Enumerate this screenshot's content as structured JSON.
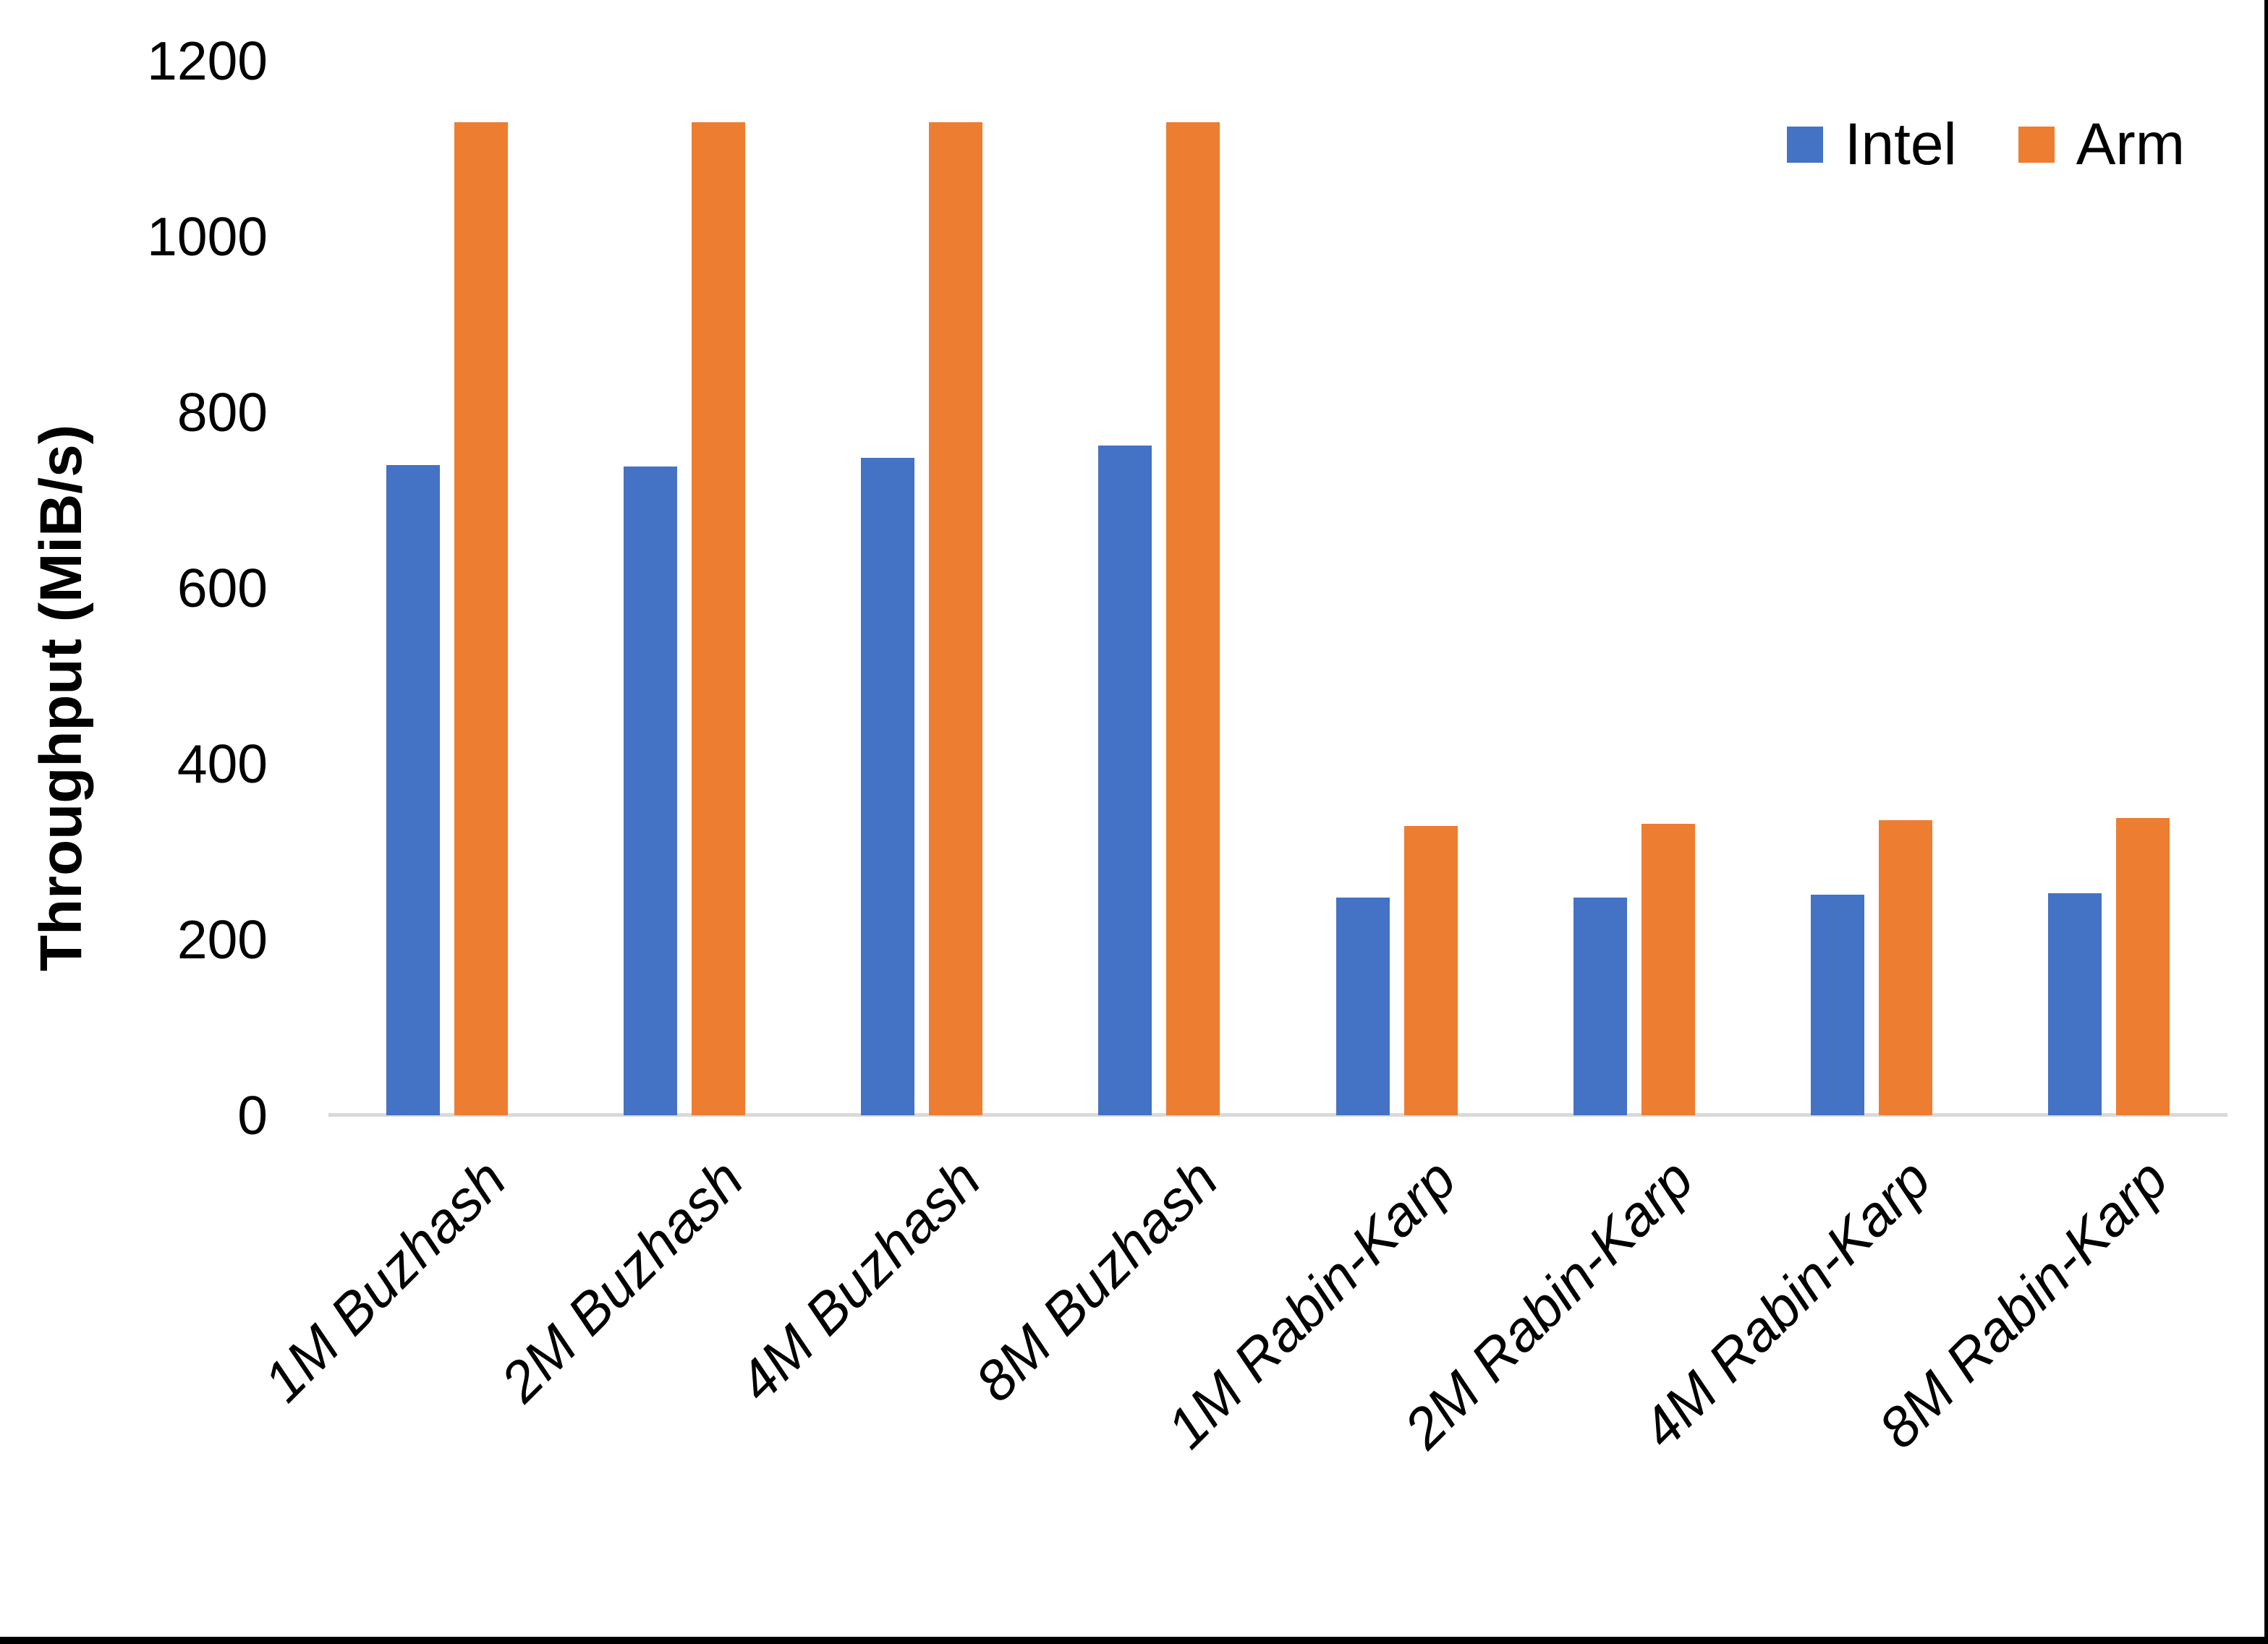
{
  "chart_data": {
    "type": "bar",
    "title": "",
    "xlabel": "",
    "ylabel": "Throughput (MiB/s)",
    "ylim": [
      0,
      1200
    ],
    "yticks": [
      0,
      200,
      400,
      600,
      800,
      1000,
      1200
    ],
    "grid": false,
    "legend_position": "top-right",
    "categories": [
      "1M Buzhash",
      "2M Buzhash",
      "4M Buzhash",
      "8M Buzhash",
      "1M Rabin-Karp",
      "2M Rabin-Karp",
      "4M Rabin-Karp",
      "8M Rabin-Karp"
    ],
    "series": [
      {
        "name": "Intel",
        "color": "#4472C4",
        "values": [
          740,
          738,
          748,
          762,
          248,
          248,
          251,
          253
        ]
      },
      {
        "name": "Arm",
        "color": "#ED7D31",
        "values": [
          1130,
          1130,
          1130,
          1130,
          329,
          332,
          336,
          338
        ]
      }
    ],
    "colors": {
      "axis_line": "#D9D9D9",
      "text": "#000000",
      "frame_border": "#000000"
    }
  }
}
